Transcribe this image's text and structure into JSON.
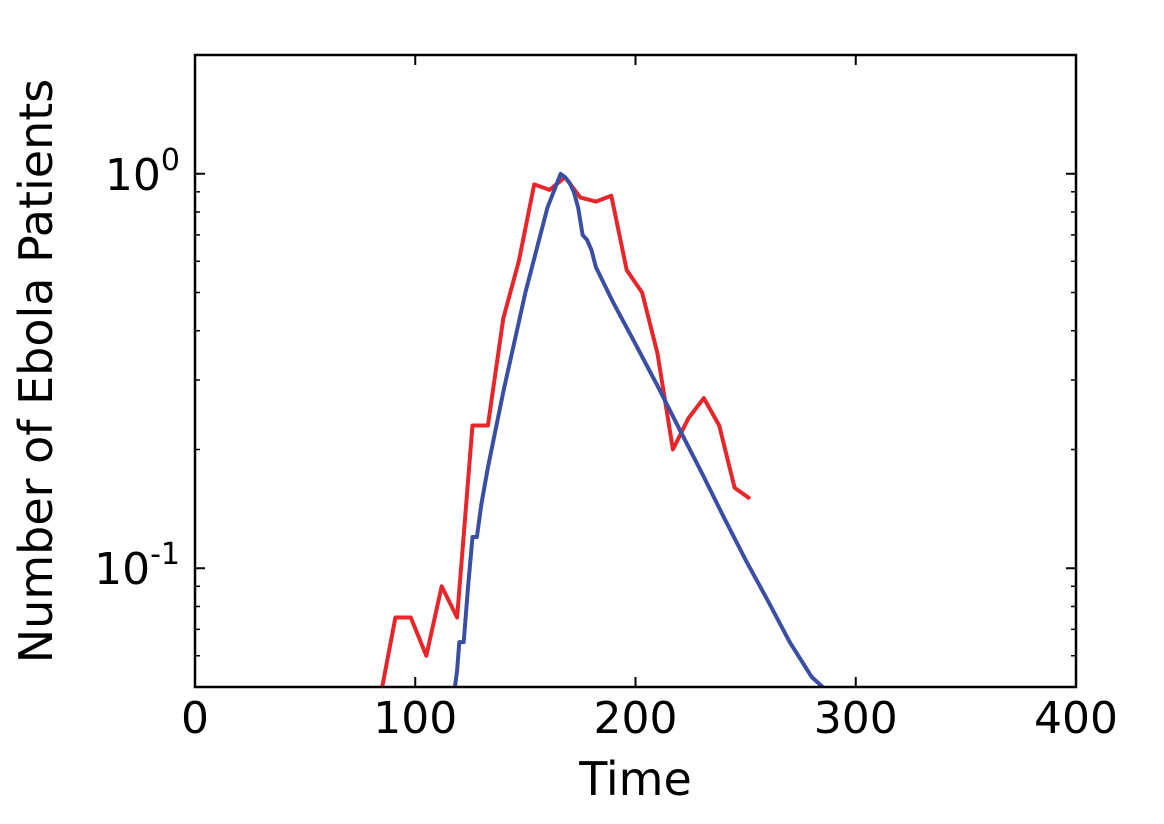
{
  "chart_data": {
    "type": "line",
    "title": "",
    "xlabel": "Time",
    "ylabel": "Number of Ebola Patients",
    "xlim": [
      0,
      400
    ],
    "ylim": [
      0.05,
      2.0
    ],
    "yscale": "log",
    "grid": false,
    "legend": "none",
    "x_ticks": [
      {
        "value": 0,
        "label": "0"
      },
      {
        "value": 100,
        "label": "100"
      },
      {
        "value": 200,
        "label": "200"
      },
      {
        "value": 300,
        "label": "300"
      },
      {
        "value": 400,
        "label": "400"
      }
    ],
    "y_ticks": [
      {
        "value": 0.1,
        "base": "10",
        "exp": "-1"
      },
      {
        "value": 1,
        "base": "10",
        "exp": "0"
      }
    ],
    "series": [
      {
        "color": "#e8262a",
        "x": [
          85,
          91,
          98,
          105,
          112,
          119,
          126,
          133,
          140,
          147,
          154,
          161,
          168,
          175,
          182,
          189,
          196,
          203,
          210,
          217,
          224,
          231,
          238,
          245,
          252
        ],
        "y": [
          0.05,
          0.075,
          0.075,
          0.06,
          0.09,
          0.075,
          0.23,
          0.23,
          0.43,
          0.6,
          0.94,
          0.91,
          0.98,
          0.87,
          0.85,
          0.88,
          0.57,
          0.5,
          0.35,
          0.2,
          0.24,
          0.27,
          0.23,
          0.16,
          0.15
        ]
      },
      {
        "color": "#3a4fa3",
        "x": [
          118,
          119,
          120,
          122,
          124,
          126,
          128,
          130,
          133,
          140,
          150,
          160,
          166,
          168,
          170,
          172,
          174,
          176,
          178,
          180,
          182,
          190,
          200,
          210,
          220,
          230,
          240,
          250,
          260,
          270,
          280,
          285
        ],
        "y": [
          0.05,
          0.055,
          0.065,
          0.065,
          0.09,
          0.12,
          0.12,
          0.145,
          0.18,
          0.28,
          0.5,
          0.82,
          1.0,
          0.98,
          0.95,
          0.9,
          0.82,
          0.7,
          0.68,
          0.64,
          0.58,
          0.47,
          0.37,
          0.29,
          0.225,
          0.175,
          0.135,
          0.105,
          0.083,
          0.065,
          0.053,
          0.05
        ]
      }
    ]
  }
}
